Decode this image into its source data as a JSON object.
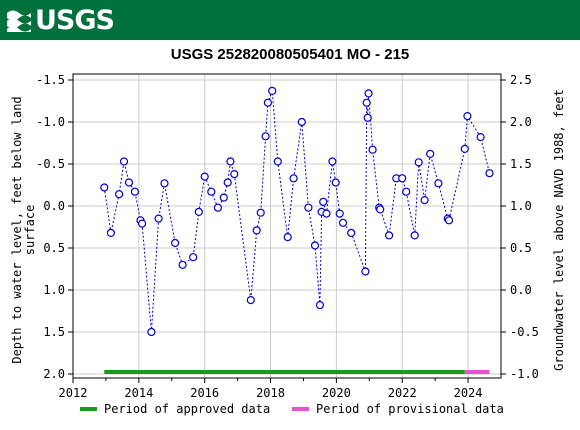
{
  "header": {
    "logo_text": "USGS",
    "logo_icon": "usgs-wave-icon",
    "bar_color": "#00703c"
  },
  "chart_data": {
    "type": "scatter",
    "title": "USGS 252820080505401 MO  - 215",
    "ylabel_left": [
      "Depth to water level, feet below land",
      "surface"
    ],
    "ylabel_right": "Groundwater level above NAVD 1988, feet",
    "x_ticks": [
      2012,
      2014,
      2016,
      2018,
      2020,
      2022,
      2024
    ],
    "xlim": [
      2012,
      2025
    ],
    "left_ticks": [
      "-1.5",
      "-1.0",
      "-0.5",
      "0.0",
      "0.5",
      "1.0",
      "1.5",
      "2.0"
    ],
    "left_tick_values": [
      -1.5,
      -1.0,
      -0.5,
      0.0,
      0.5,
      1.0,
      1.5,
      2.0
    ],
    "ylim_left": [
      -1.5,
      2.0
    ],
    "ylim_left_inverted": true,
    "right_ticks": [
      "2.5",
      "2.0",
      "1.5",
      "1.0",
      "0.5",
      "0.0",
      "-0.5",
      "-1.0"
    ],
    "right_tick_values": [
      2.5,
      2.0,
      1.5,
      1.0,
      0.5,
      0.0,
      -0.5,
      -1.0
    ],
    "grid": true,
    "marker_color": "#0000cc",
    "series": [
      {
        "x": [
          2012.95,
          2013.15,
          2013.4,
          2013.55,
          2013.7,
          2013.88,
          2014.05,
          2014.1,
          2014.38,
          2014.6,
          2014.78,
          2015.1,
          2015.33,
          2015.65,
          2015.82,
          2016.0,
          2016.2,
          2016.4,
          2016.58,
          2016.7,
          2016.78,
          2016.9,
          2017.4,
          2017.58,
          2017.7,
          2017.85,
          2017.92,
          2018.05,
          2018.22,
          2018.52,
          2018.7,
          2018.95,
          2019.15,
          2019.35,
          2019.5,
          2019.55,
          2019.6,
          2019.7,
          2019.88,
          2019.98,
          2020.1,
          2020.2,
          2020.45,
          2020.88,
          2020.92,
          2020.95,
          2020.98,
          2021.1,
          2021.3,
          2021.33,
          2021.6,
          2021.82,
          2022.0,
          2022.12,
          2022.38,
          2022.5,
          2022.68,
          2022.85,
          2023.1,
          2023.38,
          2023.42,
          2023.9,
          2023.98,
          2024.38,
          2024.65
        ],
        "y": [
          -0.22,
          0.32,
          -0.14,
          -0.53,
          -0.28,
          -0.17,
          0.17,
          0.21,
          1.5,
          0.15,
          -0.27,
          0.44,
          0.7,
          0.61,
          0.07,
          -0.35,
          -0.17,
          0.02,
          -0.1,
          -0.28,
          -0.53,
          -0.38,
          1.12,
          0.29,
          0.08,
          -0.83,
          -1.23,
          -1.37,
          -0.53,
          0.37,
          -0.33,
          -1.0,
          0.02,
          0.47,
          1.18,
          0.07,
          -0.05,
          0.09,
          -0.53,
          -0.28,
          0.09,
          0.2,
          0.32,
          0.78,
          -1.23,
          -1.05,
          -1.34,
          -0.67,
          0.02,
          0.04,
          0.35,
          -0.33,
          -0.33,
          -0.17,
          0.35,
          -0.52,
          -0.07,
          -0.62,
          -0.27,
          0.15,
          0.17,
          -0.68,
          -1.07,
          -0.82,
          -0.39
        ]
      }
    ],
    "periods": [
      {
        "label": "Period of approved data",
        "start": 2012.95,
        "end": 2023.9,
        "color": "#1a9c1a"
      },
      {
        "label": "Period of provisional data",
        "start": 2023.9,
        "end": 2024.65,
        "color": "#e754d2"
      }
    ]
  }
}
